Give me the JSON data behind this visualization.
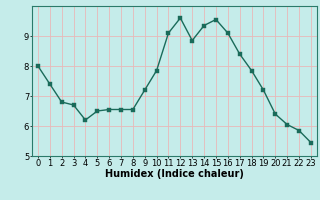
{
  "x": [
    0,
    1,
    2,
    3,
    4,
    5,
    6,
    7,
    8,
    9,
    10,
    11,
    12,
    13,
    14,
    15,
    16,
    17,
    18,
    19,
    20,
    21,
    22,
    23
  ],
  "y": [
    8.0,
    7.4,
    6.8,
    6.7,
    6.2,
    6.5,
    6.55,
    6.55,
    6.55,
    7.2,
    7.85,
    9.1,
    9.6,
    8.85,
    9.35,
    9.55,
    9.1,
    8.4,
    7.85,
    7.2,
    6.4,
    6.05,
    5.85,
    5.45
  ],
  "bg_color": "#c5ecea",
  "grid_color": "#e8b8b8",
  "line_color": "#1a6b5a",
  "marker_color": "#1a6b5a",
  "xlabel": "Humidex (Indice chaleur)",
  "xlim": [
    -0.5,
    23.5
  ],
  "ylim": [
    5.0,
    10.0
  ],
  "yticks": [
    5,
    6,
    7,
    8,
    9
  ],
  "xticks": [
    0,
    1,
    2,
    3,
    4,
    5,
    6,
    7,
    8,
    9,
    10,
    11,
    12,
    13,
    14,
    15,
    16,
    17,
    18,
    19,
    20,
    21,
    22,
    23
  ],
  "xlabel_fontsize": 7,
  "tick_fontsize": 6,
  "line_width": 1.0,
  "marker_size": 2.5
}
